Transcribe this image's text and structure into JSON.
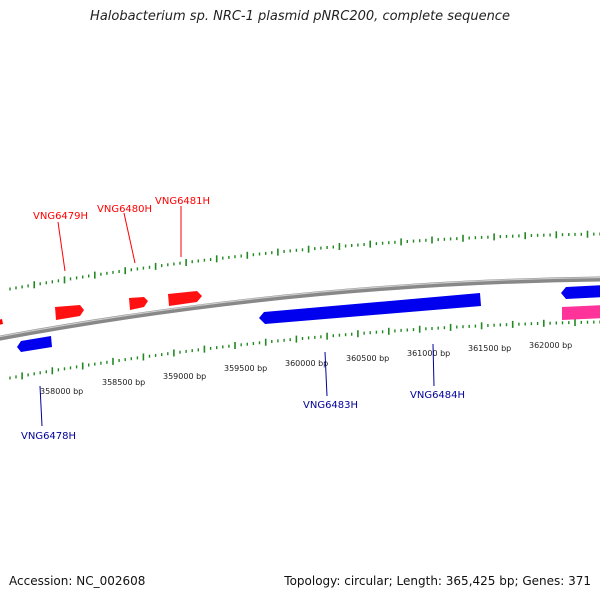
{
  "header": {
    "title": "Halobacterium sp. NRC-1 plasmid pNRC200, complete sequence"
  },
  "footer": {
    "accession": "Accession: NC_002608",
    "stats": "Topology: circular; Length: 365,425 bp; Genes: 371"
  },
  "colors": {
    "forward_gene": "#ff0000",
    "reverse_gene": "#0000ee",
    "other_gene": "#ff3399",
    "backbone": "#888888",
    "ticks": "#228822"
  },
  "scale": {
    "tick_labels": [
      "358000 bp",
      "358500 bp",
      "359000 bp",
      "359500 bp",
      "360000 bp",
      "360500 bp",
      "361000 bp",
      "361500 bp",
      "362000 bp"
    ]
  },
  "genes": {
    "forward": [
      {
        "name": "VNG6479H"
      },
      {
        "name": "VNG6480H"
      },
      {
        "name": "VNG6481H"
      }
    ],
    "reverse": [
      {
        "name": "VNG6478H"
      },
      {
        "name": "VNG6483H"
      },
      {
        "name": "VNG6484H"
      }
    ]
  }
}
